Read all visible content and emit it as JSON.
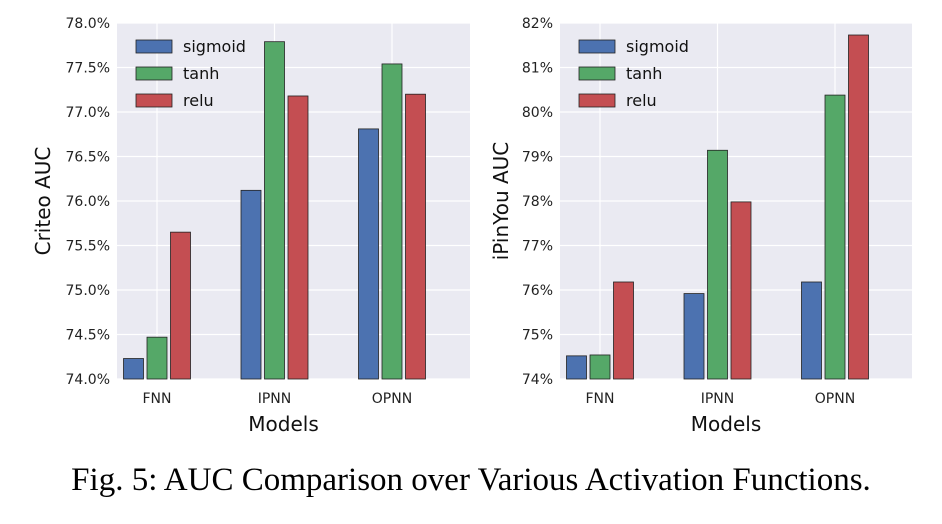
{
  "caption": "Fig. 5: AUC Comparison over Various Activation Functions.",
  "colors": {
    "sigmoid": "#4C72B0",
    "tanh": "#55A868",
    "relu": "#C44E52",
    "plot_bg": "#EAEAF2",
    "grid": "#ffffff"
  },
  "chart_data": [
    {
      "type": "bar",
      "title": "",
      "xlabel": "Models",
      "ylabel": "Criteo AUC",
      "categories": [
        "FNN",
        "IPNN",
        "OPNN"
      ],
      "series": [
        {
          "name": "sigmoid",
          "values": [
            74.23,
            76.12,
            76.81
          ]
        },
        {
          "name": "tanh",
          "values": [
            74.47,
            77.79,
            77.54
          ]
        },
        {
          "name": "relu",
          "values": [
            75.65,
            77.18,
            77.2
          ]
        }
      ],
      "ylim": [
        74.0,
        78.0
      ],
      "yticks": [
        "74.0%",
        "74.5%",
        "75.0%",
        "75.5%",
        "76.0%",
        "76.5%",
        "77.0%",
        "77.5%",
        "78.0%"
      ],
      "grid": true,
      "legend": "top-left"
    },
    {
      "type": "bar",
      "title": "",
      "xlabel": "Models",
      "ylabel": "iPinYou AUC",
      "categories": [
        "FNN",
        "IPNN",
        "OPNN"
      ],
      "series": [
        {
          "name": "sigmoid",
          "values": [
            74.52,
            75.92,
            76.18
          ]
        },
        {
          "name": "tanh",
          "values": [
            74.54,
            79.14,
            80.38
          ]
        },
        {
          "name": "relu",
          "values": [
            76.18,
            77.98,
            81.73
          ]
        }
      ],
      "ylim": [
        74,
        82
      ],
      "yticks": [
        "74%",
        "75%",
        "76%",
        "77%",
        "78%",
        "79%",
        "80%",
        "81%",
        "82%"
      ],
      "grid": true,
      "legend": "top-left"
    }
  ]
}
